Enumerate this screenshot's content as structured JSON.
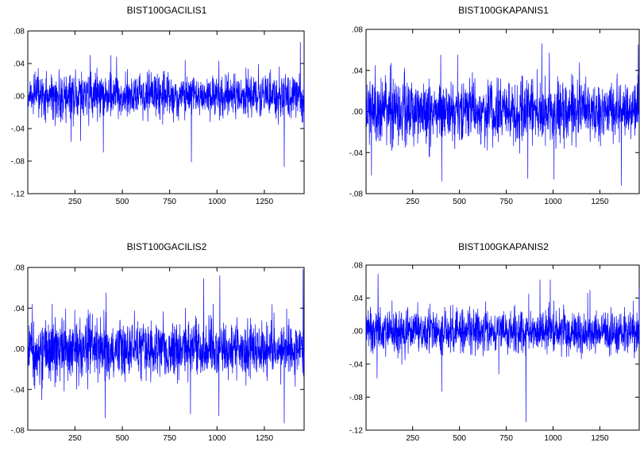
{
  "series_color": "#0000ff",
  "chart_data": [
    {
      "type": "line",
      "title": "BIST100GACILIS1",
      "xlim": [
        1,
        1460
      ],
      "ylim": [
        -0.12,
        0.08
      ],
      "xticks": [
        250,
        500,
        750,
        1000,
        1250
      ],
      "xtick_labels": [
        "250",
        "500",
        "750",
        "1000",
        "1250"
      ],
      "yticks": [
        0.08,
        0.04,
        0.0,
        -0.04,
        -0.08,
        -0.12
      ],
      "ytick_labels": [
        ".08",
        ".04",
        ".00",
        "-.04",
        "-.08",
        "-.12"
      ],
      "grid": false,
      "noise_sd": 0.0135,
      "spikes": [
        {
          "x": 330,
          "y": 0.05
        },
        {
          "x": 440,
          "y": 0.05
        },
        {
          "x": 470,
          "y": 0.048
        },
        {
          "x": 400,
          "y": -0.069
        },
        {
          "x": 865,
          "y": -0.081
        },
        {
          "x": 1355,
          "y": -0.087
        },
        {
          "x": 1440,
          "y": 0.066
        },
        {
          "x": 1010,
          "y": 0.043
        },
        {
          "x": 1460,
          "y": -0.042
        },
        {
          "x": 230,
          "y": -0.056
        },
        {
          "x": 280,
          "y": -0.055
        }
      ]
    },
    {
      "type": "line",
      "title": "BIST100GKAPANIS1",
      "xlim": [
        1,
        1460
      ],
      "ylim": [
        -0.08,
        0.08
      ],
      "xticks": [
        250,
        500,
        750,
        1000,
        1250
      ],
      "xtick_labels": [
        "250",
        "500",
        "750",
        "1000",
        "1250"
      ],
      "yticks": [
        0.08,
        0.04,
        0.0,
        -0.04,
        -0.08
      ],
      "ytick_labels": [
        ".08",
        ".04",
        ".00",
        "-.04",
        "-.08"
      ],
      "grid": false,
      "noise_sd": 0.0145,
      "spikes": [
        {
          "x": 400,
          "y": 0.055
        },
        {
          "x": 490,
          "y": 0.055
        },
        {
          "x": 940,
          "y": 0.066
        },
        {
          "x": 980,
          "y": 0.057
        },
        {
          "x": 1455,
          "y": 0.065
        },
        {
          "x": 30,
          "y": -0.062
        },
        {
          "x": 405,
          "y": -0.068
        },
        {
          "x": 865,
          "y": -0.065
        },
        {
          "x": 1005,
          "y": -0.066
        },
        {
          "x": 1365,
          "y": -0.072
        },
        {
          "x": 130,
          "y": 0.045
        }
      ]
    },
    {
      "type": "line",
      "title": "BIST100GACILIS2",
      "xlim": [
        1,
        1460
      ],
      "ylim": [
        -0.08,
        0.08
      ],
      "xticks": [
        250,
        500,
        750,
        1000,
        1250
      ],
      "xtick_labels": [
        "250",
        "500",
        "750",
        "1000",
        "1250"
      ],
      "yticks": [
        0.08,
        0.04,
        0.0,
        -0.04,
        -0.08
      ],
      "ytick_labels": [
        ".08",
        ".04",
        ".00",
        "-.04",
        "-.08"
      ],
      "grid": false,
      "noise_sd": 0.0145,
      "spikes": [
        {
          "x": 415,
          "y": 0.055
        },
        {
          "x": 930,
          "y": 0.069
        },
        {
          "x": 1015,
          "y": 0.072
        },
        {
          "x": 1455,
          "y": 0.078
        },
        {
          "x": 410,
          "y": -0.068
        },
        {
          "x": 860,
          "y": -0.064
        },
        {
          "x": 1010,
          "y": -0.066
        },
        {
          "x": 1355,
          "y": -0.073
        },
        {
          "x": 75,
          "y": -0.05
        },
        {
          "x": 130,
          "y": 0.044
        }
      ]
    },
    {
      "type": "line",
      "title": "BIST100GKAPANIS2",
      "xlim": [
        1,
        1460
      ],
      "ylim": [
        -0.12,
        0.08
      ],
      "xticks": [
        250,
        500,
        750,
        1000,
        1250
      ],
      "xtick_labels": [
        "250",
        "500",
        "750",
        "1000",
        "1250"
      ],
      "yticks": [
        0.08,
        0.04,
        0.0,
        -0.04,
        -0.08,
        -0.12
      ],
      "ytick_labels": [
        ".08",
        ".04",
        ".00",
        "-.04",
        "-.08",
        "-.12"
      ],
      "grid": false,
      "noise_sd": 0.013,
      "spikes": [
        {
          "x": 65,
          "y": 0.069
        },
        {
          "x": 855,
          "y": -0.11
        },
        {
          "x": 930,
          "y": 0.062
        },
        {
          "x": 985,
          "y": 0.062
        },
        {
          "x": 405,
          "y": -0.073
        },
        {
          "x": 1460,
          "y": 0.052
        },
        {
          "x": 1185,
          "y": 0.046
        },
        {
          "x": 870,
          "y": 0.045
        },
        {
          "x": 60,
          "y": -0.057
        },
        {
          "x": 710,
          "y": -0.052
        }
      ]
    }
  ]
}
